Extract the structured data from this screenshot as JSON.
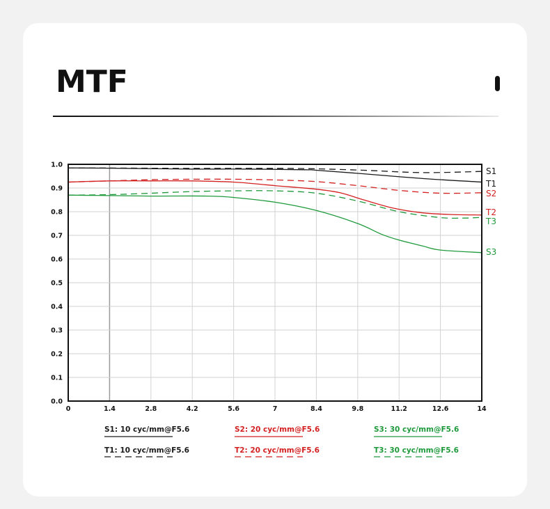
{
  "page": {
    "title": "MTF"
  },
  "chart_data": {
    "type": "line",
    "xlim": [
      0,
      14
    ],
    "ylim": [
      0,
      1
    ],
    "x_ticks": [
      "0",
      "1.4",
      "2.8",
      "4.2",
      "5.6",
      "7",
      "8.4",
      "9.8",
      "11.2",
      "12.6",
      "14"
    ],
    "y_ticks": [
      "0.0",
      "0.1",
      "0.2",
      "0.3",
      "0.4",
      "0.5",
      "0.6",
      "0.7",
      "0.8",
      "0.9",
      "1.0"
    ],
    "x_tick_values": [
      0,
      1.4,
      2.8,
      4.2,
      5.6,
      7,
      8.4,
      9.8,
      11.2,
      12.6,
      14
    ],
    "y_tick_values": [
      0,
      0.1,
      0.2,
      0.3,
      0.4,
      0.5,
      0.6,
      0.7,
      0.8,
      0.9,
      1.0
    ],
    "grid": true,
    "series": [
      {
        "name": "S1",
        "color": "#1a1a1a",
        "dashed": false,
        "x": [
          0,
          2,
          4,
          6,
          8,
          8.4,
          10,
          12,
          14
        ],
        "y": [
          0.985,
          0.983,
          0.98,
          0.98,
          0.977,
          0.975,
          0.96,
          0.94,
          0.925
        ]
      },
      {
        "name": "T1",
        "color": "#1a1a1a",
        "dashed": true,
        "x": [
          0,
          2,
          4,
          6,
          8,
          10,
          12,
          14
        ],
        "y": [
          0.985,
          0.984,
          0.983,
          0.983,
          0.982,
          0.975,
          0.965,
          0.97
        ]
      },
      {
        "name": "S2",
        "color": "#d42020",
        "dashed": false,
        "x": [
          0,
          1.4,
          2.8,
          4.2,
          5.6,
          7,
          8.4,
          9.2,
          10,
          11,
          12,
          13,
          14
        ],
        "y": [
          0.925,
          0.93,
          0.93,
          0.93,
          0.925,
          0.91,
          0.895,
          0.88,
          0.85,
          0.815,
          0.795,
          0.788,
          0.786
        ]
      },
      {
        "name": "T2",
        "color": "#d42020",
        "dashed": true,
        "x": [
          0,
          1.4,
          2.8,
          4.2,
          5.6,
          7,
          8.4,
          9.8,
          11.2,
          12.6,
          14
        ],
        "y": [
          0.925,
          0.93,
          0.935,
          0.937,
          0.937,
          0.934,
          0.927,
          0.91,
          0.89,
          0.878,
          0.88
        ]
      },
      {
        "name": "S3",
        "color": "#1e9a3c",
        "dashed": false,
        "x": [
          0,
          1.4,
          2.8,
          4.7,
          5.6,
          7,
          8.4,
          9.8,
          10.6,
          11.2,
          12,
          12.6,
          14
        ],
        "y": [
          0.87,
          0.868,
          0.866,
          0.866,
          0.86,
          0.84,
          0.805,
          0.75,
          0.705,
          0.68,
          0.655,
          0.638,
          0.627
        ]
      },
      {
        "name": "T3",
        "color": "#1e9a3c",
        "dashed": true,
        "x": [
          0,
          1.4,
          2.8,
          4.2,
          5.6,
          7,
          8.4,
          9.8,
          11.2,
          12.6,
          13.4,
          14
        ],
        "y": [
          0.87,
          0.872,
          0.878,
          0.885,
          0.888,
          0.888,
          0.878,
          0.845,
          0.8,
          0.775,
          0.773,
          0.776
        ]
      }
    ],
    "series_labels": [
      "S1",
      "T1",
      "S2",
      "T2",
      "T3",
      "S3"
    ],
    "legend": [
      {
        "text": "S1: 10 cyc/mm@F5.6",
        "color": "#1a1a1a",
        "dashed": false
      },
      {
        "text": "S2: 20 cyc/mm@F5.6",
        "color": "#d42020",
        "dashed": false
      },
      {
        "text": "S3: 30 cyc/mm@F5.6",
        "color": "#1e9a3c",
        "dashed": false
      },
      {
        "text": "T1: 10 cyc/mm@F5.6",
        "color": "#1a1a1a",
        "dashed": true
      },
      {
        "text": "T2: 20 cyc/mm@F5.6",
        "color": "#d42020",
        "dashed": true
      },
      {
        "text": "T3:  30 cyc/mm@F5.6",
        "color": "#1e9a3c",
        "dashed": true
      }
    ]
  }
}
